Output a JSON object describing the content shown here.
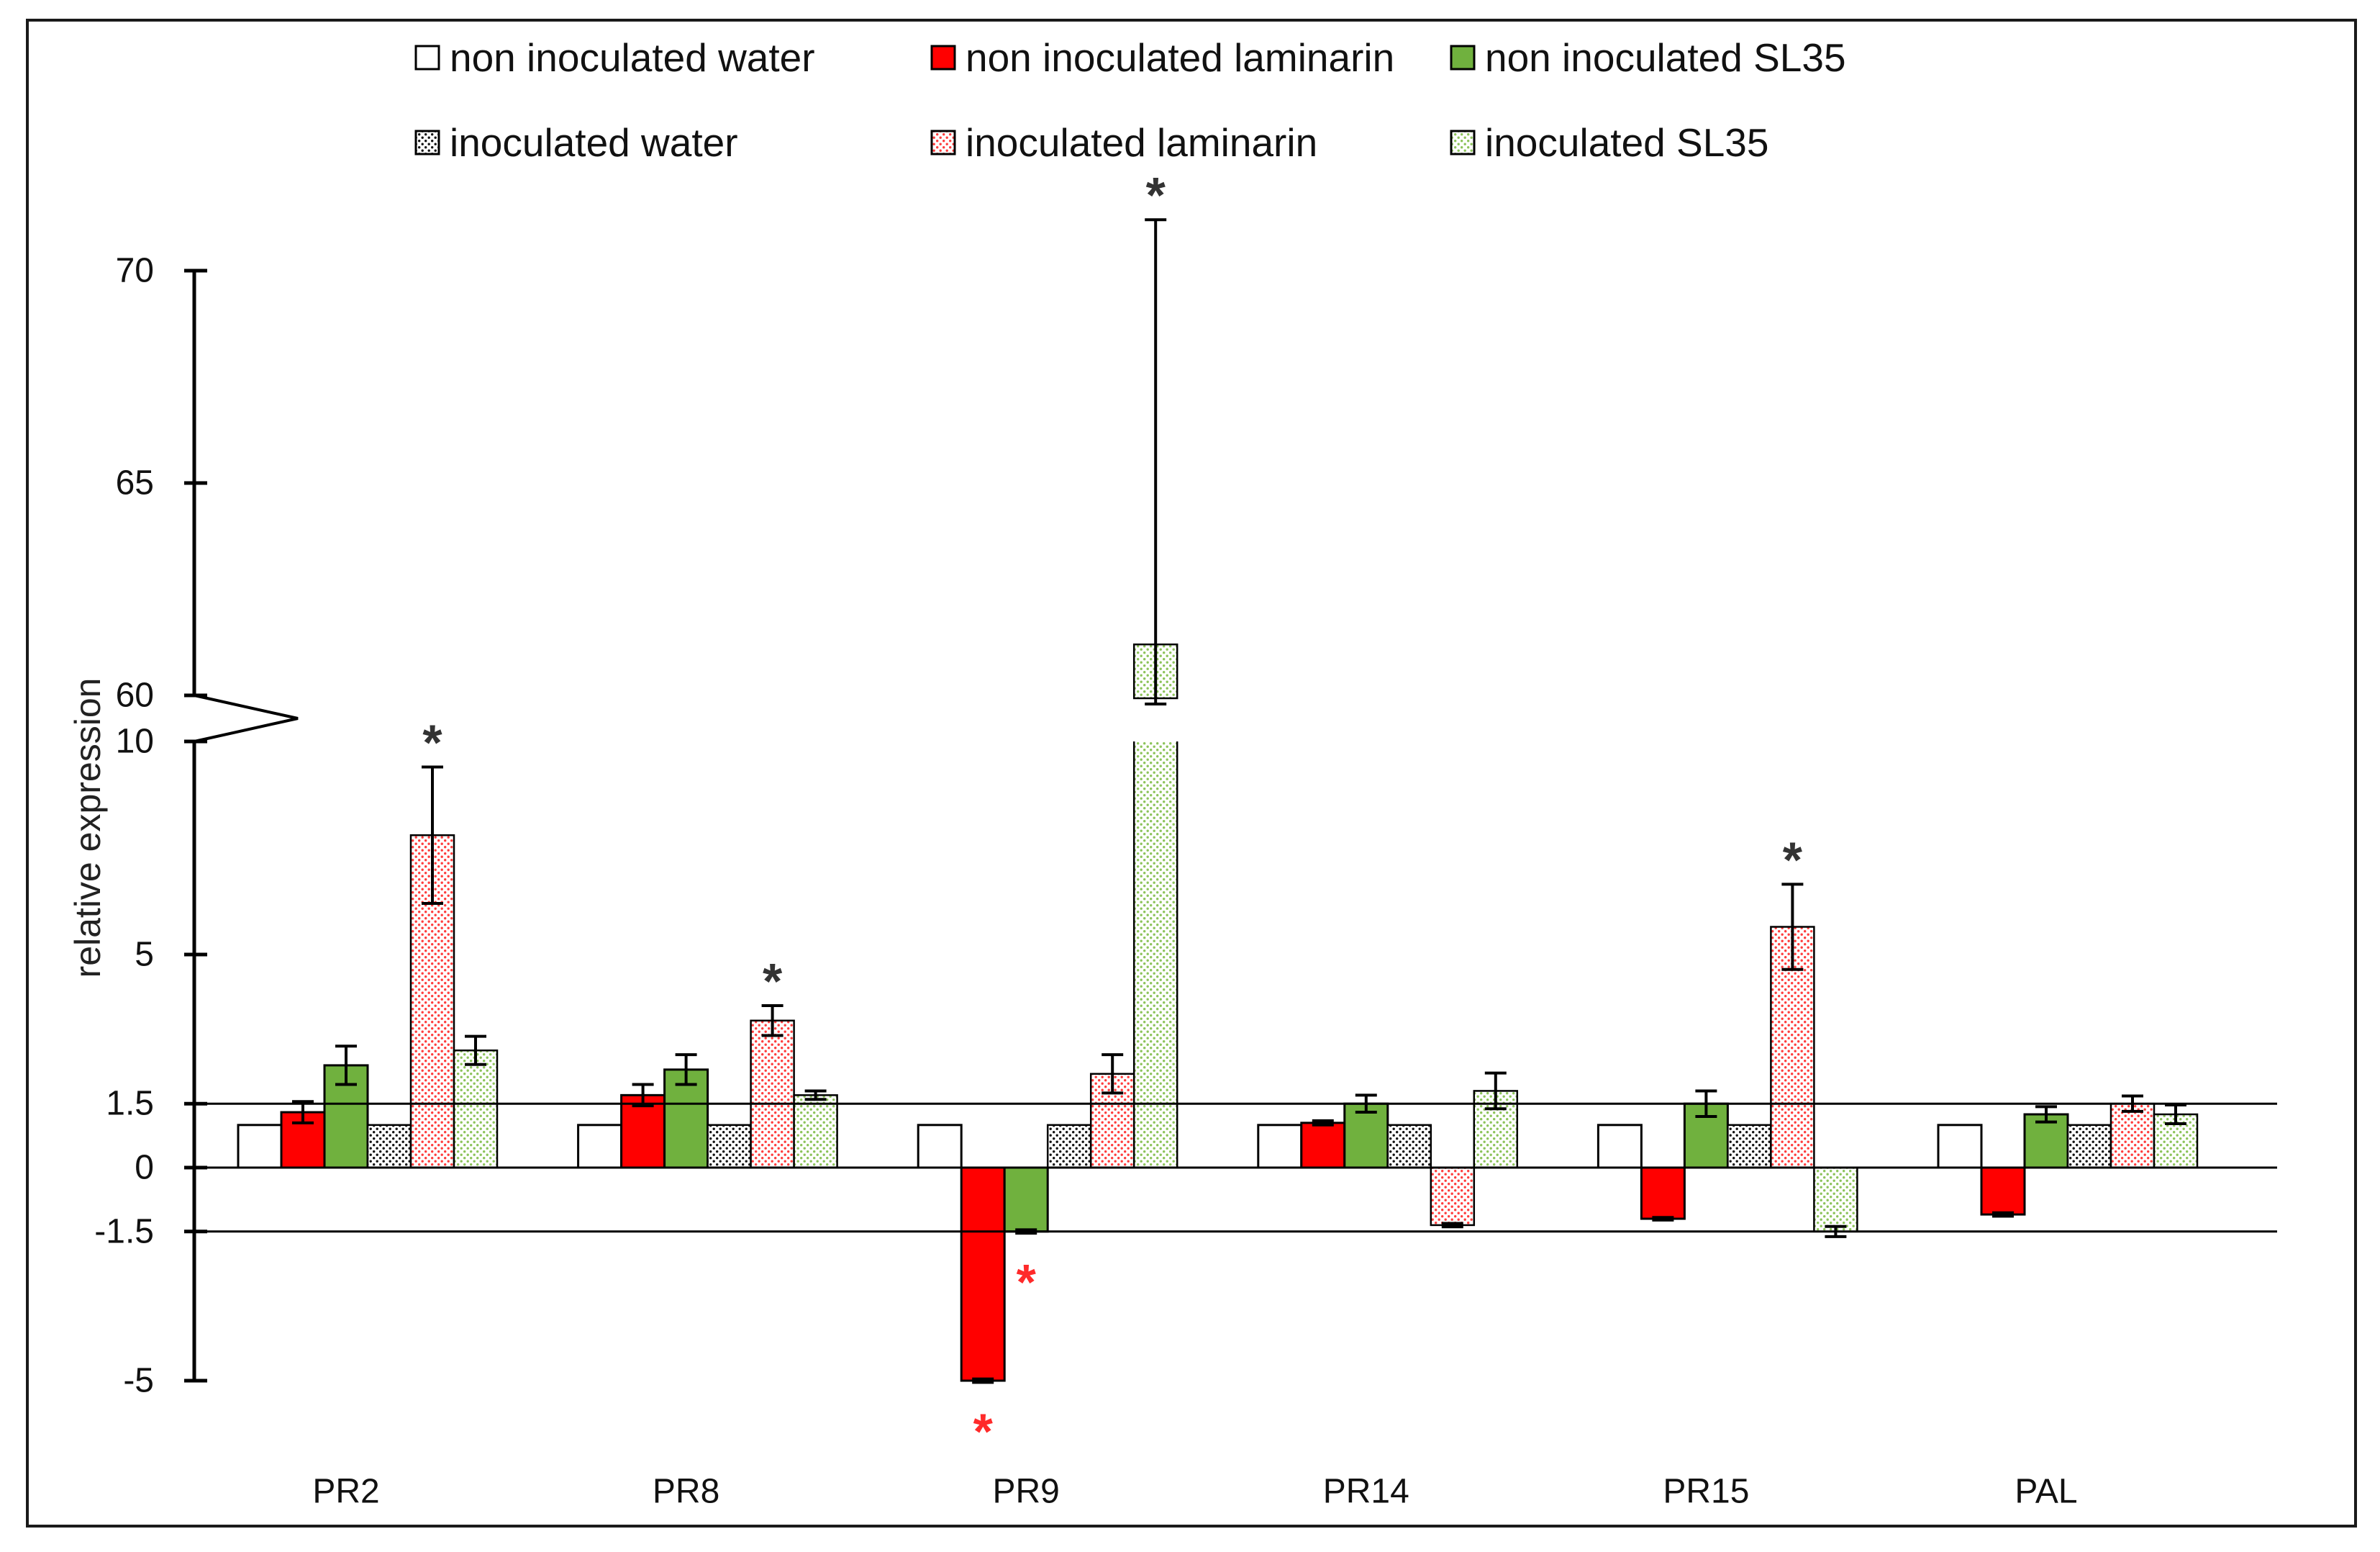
{
  "chart_data": {
    "type": "bar",
    "ylabel": "relative expression",
    "categories": [
      "PR2",
      "PR8",
      "PR9",
      "PR14",
      "PR15",
      "PAL"
    ],
    "y_break": {
      "lower": [
        -5,
        10
      ],
      "upper": [
        60,
        70
      ]
    },
    "yticks": [
      70,
      65,
      60,
      10,
      5,
      1.5,
      0,
      -1.5,
      -5
    ],
    "reference_lines": [
      1.5,
      0,
      -1.5
    ],
    "series": [
      {
        "name": "non inoculated water",
        "color": "#ffffff",
        "dot_color": null,
        "values": [
          1,
          1,
          1,
          1,
          1,
          1
        ],
        "errors": [
          0,
          0,
          0,
          0,
          0,
          0
        ]
      },
      {
        "name": "non inoculated laminarin",
        "color": "#ff0000",
        "dot_color": null,
        "values": [
          1.3,
          1.7,
          -5,
          1.05,
          -1.2,
          -1.1
        ],
        "errors": [
          0.25,
          0.25,
          0.04,
          0.05,
          0.03,
          0.04
        ]
      },
      {
        "name": "non inoculated SL35",
        "color": "#70b13e",
        "dot_color": null,
        "values": [
          2.4,
          2.3,
          -1.5,
          1.5,
          1.5,
          1.25
        ],
        "errors": [
          0.45,
          0.35,
          0.04,
          0.2,
          0.3,
          0.18
        ]
      },
      {
        "name": "inoculated water",
        "color": "#ffffff",
        "dot_color": "#111111",
        "values": [
          1,
          1,
          1,
          1,
          1,
          1
        ],
        "errors": [
          0,
          0,
          0,
          0,
          0,
          0
        ]
      },
      {
        "name": "inoculated laminarin",
        "color": "#ffffff",
        "dot_color": "#ff3c3c",
        "values": [
          7.8,
          3.45,
          2.2,
          -1.35,
          5.65,
          1.5
        ],
        "errors": [
          1.6,
          0.35,
          0.45,
          0.04,
          1.0,
          0.18
        ]
      },
      {
        "name": "inoculated SL35",
        "color": "#ffffff",
        "dot_color": "#8cc35a",
        "values": [
          2.75,
          1.7,
          61.2,
          1.8,
          -1.5,
          1.25
        ],
        "errors": [
          0.33,
          0.1,
          10,
          0.42,
          0.12,
          0.22
        ]
      }
    ],
    "significance": [
      {
        "category_index": 0,
        "series_index": 4,
        "mark": "*",
        "color": "#333333"
      },
      {
        "category_index": 1,
        "series_index": 4,
        "mark": "*",
        "color": "#333333"
      },
      {
        "category_index": 2,
        "series_index": 5,
        "mark": "*",
        "color": "#333333"
      },
      {
        "category_index": 4,
        "series_index": 4,
        "mark": "*",
        "color": "#333333"
      },
      {
        "category_index": 2,
        "series_index": 1,
        "mark": "*",
        "color": "#ff2a2a"
      },
      {
        "category_index": 2,
        "series_index": 2,
        "mark": "*",
        "color": "#ff2a2a"
      }
    ]
  }
}
